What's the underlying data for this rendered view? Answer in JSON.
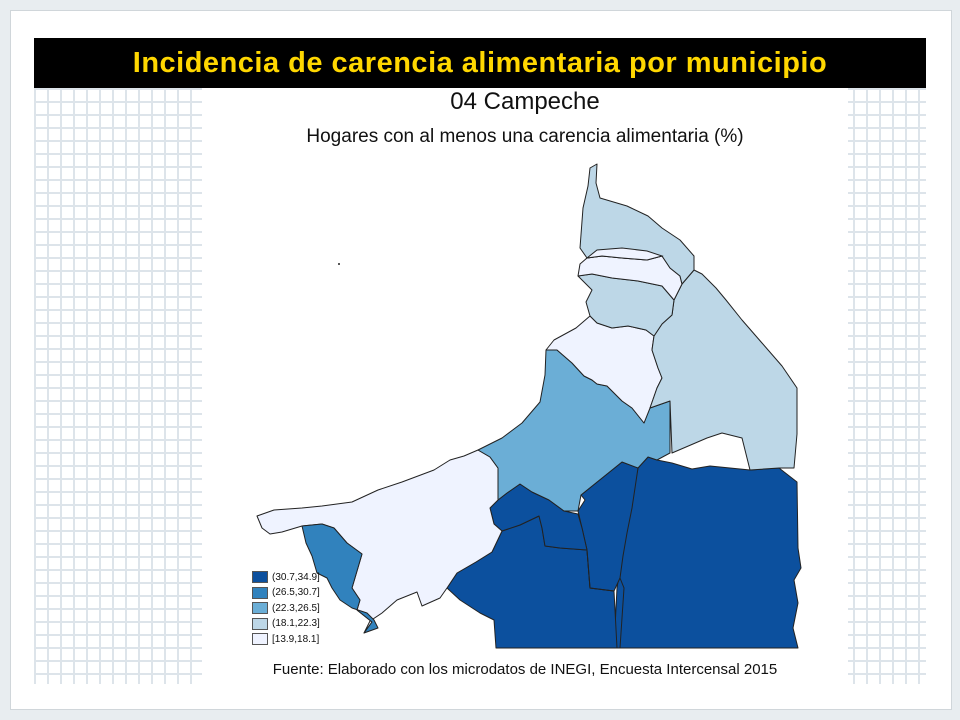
{
  "slide": {
    "title": "Incidencia de carencia alimentaria por municipio"
  },
  "map": {
    "title": "04 Campeche",
    "subtitle": "Hogares con al menos una carencia alimentaria (%)",
    "source": "Fuente: Elaborado con los microdatos de INEGI, Encuesta Intercensal 2015",
    "legend": [
      {
        "label": "(30.7,34.9]",
        "color": "#0c509e"
      },
      {
        "label": "(26.5,30.7]",
        "color": "#3182bd"
      },
      {
        "label": "(22.3,26.5]",
        "color": "#6baed6"
      },
      {
        "label": "(18.1,22.3]",
        "color": "#bdd7e7"
      },
      {
        "label": "[13.9,18.1]",
        "color": "#eff3ff"
      }
    ]
  }
}
